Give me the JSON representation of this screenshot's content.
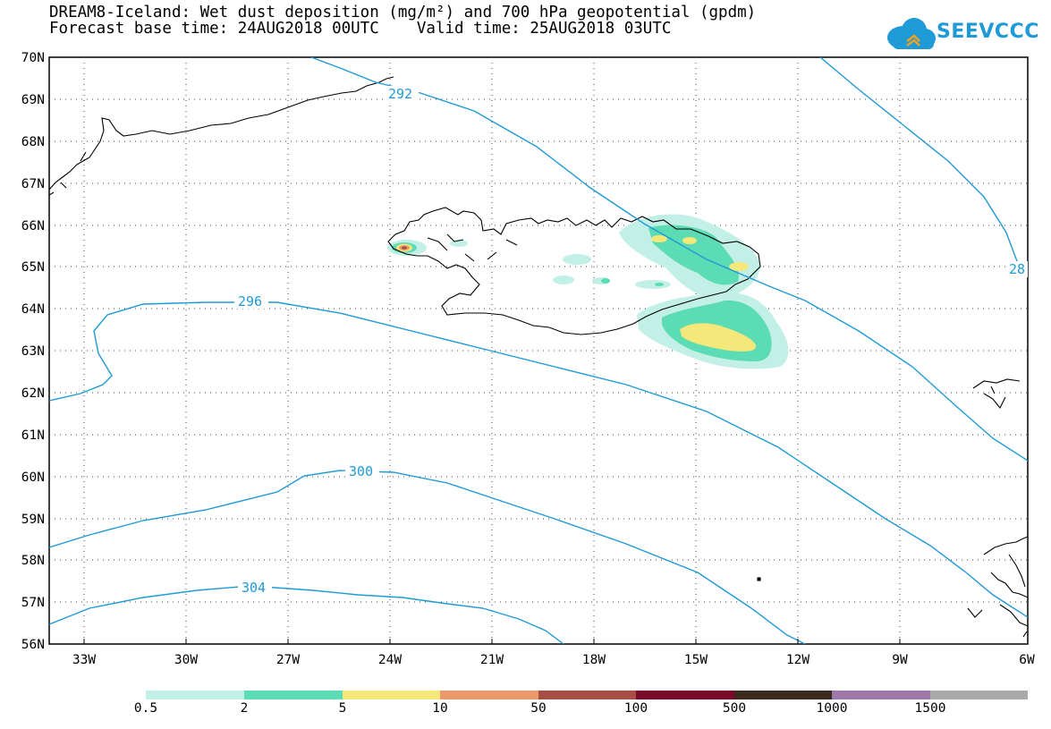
{
  "title": {
    "line1": "DREAM8-Iceland: Wet dust deposition (mg/m²) and 700 hPa geopotential (gpdm)",
    "line2": "Forecast base time: 24AUG2018 00UTC    Valid time: 25AUG2018 03UTC"
  },
  "logo": {
    "text": "SEEVCCC",
    "color": "#1e9ad6"
  },
  "map": {
    "lat_labels": [
      "70N",
      "69N",
      "68N",
      "67N",
      "66N",
      "65N",
      "64N",
      "63N",
      "62N",
      "61N",
      "60N",
      "59N",
      "58N",
      "57N",
      "56N"
    ],
    "lon_labels": [
      "33W",
      "30W",
      "27W",
      "24W",
      "21W",
      "18W",
      "15W",
      "12W",
      "9W",
      "6W"
    ],
    "contour_color": "#1e9ad6",
    "contour_labels": [
      "292",
      "296",
      "300",
      "304",
      "28"
    ],
    "gridlines": "dotted"
  },
  "legend": {
    "thresholds": [
      "0.5",
      "2",
      "5",
      "10",
      "50",
      "100",
      "500",
      "1000",
      "1500"
    ],
    "colors": [
      "#c2f0e6",
      "#5cdcb4",
      "#f4e87a",
      "#ec9a6c",
      "#a84e44",
      "#7a0a2a",
      "#3a2a1e",
      "#9e78a8",
      "#aaaaaa"
    ]
  }
}
